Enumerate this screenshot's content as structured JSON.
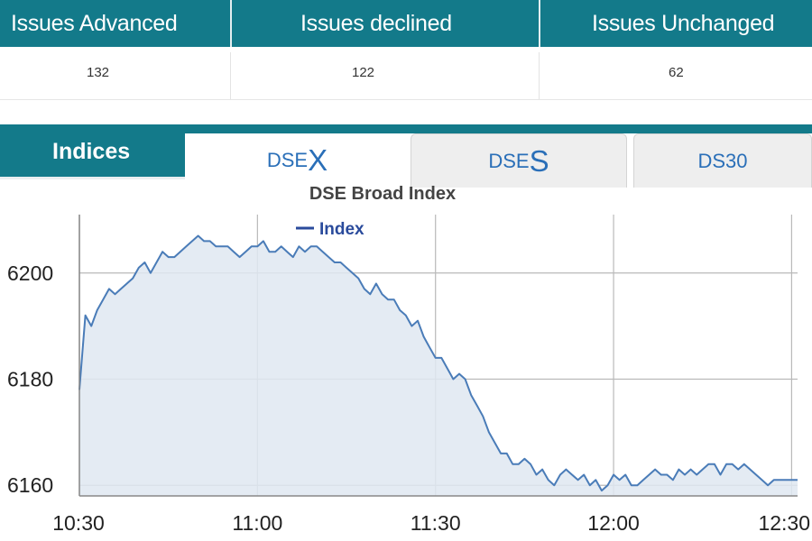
{
  "stats": {
    "headers": [
      "Issues Advanced",
      "Issues declined",
      "Issues Unchanged"
    ],
    "values": [
      "132",
      "122",
      "62"
    ]
  },
  "tabs": {
    "indices": "Indices",
    "dsex": {
      "prefix": "DSE",
      "suffix": "X"
    },
    "dses": {
      "prefix": "DSE",
      "suffix": "S"
    },
    "ds30": "DS30"
  },
  "colors": {
    "header_teal": "#137a8a",
    "tab_text": "#2a6fb8",
    "series_line": "#4a7cb8",
    "series_fill": "#dfe7f1"
  },
  "chart_data": {
    "type": "area",
    "title": "DSE Broad Index",
    "legend": [
      "Index"
    ],
    "legend_position": "top",
    "x_ticks": [
      "10:30",
      "11:00",
      "11:30",
      "12:00",
      "12:30"
    ],
    "y_ticks": [
      6160,
      6180,
      6200
    ],
    "xlim": [
      "10:30",
      "12:31"
    ],
    "ylim": [
      6158,
      6211
    ],
    "grid": true,
    "series": [
      {
        "name": "Index",
        "points": [
          [
            "10:30",
            6178
          ],
          [
            "10:31",
            6192
          ],
          [
            "10:32",
            6190
          ],
          [
            "10:33",
            6193
          ],
          [
            "10:34",
            6195
          ],
          [
            "10:35",
            6197
          ],
          [
            "10:36",
            6196
          ],
          [
            "10:37",
            6197
          ],
          [
            "10:38",
            6198
          ],
          [
            "10:39",
            6199
          ],
          [
            "10:40",
            6201
          ],
          [
            "10:41",
            6202
          ],
          [
            "10:42",
            6200
          ],
          [
            "10:43",
            6202
          ],
          [
            "10:44",
            6204
          ],
          [
            "10:45",
            6203
          ],
          [
            "10:46",
            6203
          ],
          [
            "10:47",
            6204
          ],
          [
            "10:48",
            6205
          ],
          [
            "10:49",
            6206
          ],
          [
            "10:50",
            6207
          ],
          [
            "10:51",
            6206
          ],
          [
            "10:52",
            6206
          ],
          [
            "10:53",
            6205
          ],
          [
            "10:54",
            6205
          ],
          [
            "10:55",
            6205
          ],
          [
            "10:56",
            6204
          ],
          [
            "10:57",
            6203
          ],
          [
            "10:58",
            6204
          ],
          [
            "10:59",
            6205
          ],
          [
            "11:00",
            6205
          ],
          [
            "11:01",
            6206
          ],
          [
            "11:02",
            6204
          ],
          [
            "11:03",
            6204
          ],
          [
            "11:04",
            6205
          ],
          [
            "11:05",
            6204
          ],
          [
            "11:06",
            6203
          ],
          [
            "11:07",
            6205
          ],
          [
            "11:08",
            6204
          ],
          [
            "11:09",
            6205
          ],
          [
            "11:10",
            6205
          ],
          [
            "11:11",
            6204
          ],
          [
            "11:12",
            6203
          ],
          [
            "11:13",
            6202
          ],
          [
            "11:14",
            6202
          ],
          [
            "11:15",
            6201
          ],
          [
            "11:16",
            6200
          ],
          [
            "11:17",
            6199
          ],
          [
            "11:18",
            6197
          ],
          [
            "11:19",
            6196
          ],
          [
            "11:20",
            6198
          ],
          [
            "11:21",
            6196
          ],
          [
            "11:22",
            6195
          ],
          [
            "11:23",
            6195
          ],
          [
            "11:24",
            6193
          ],
          [
            "11:25",
            6192
          ],
          [
            "11:26",
            6190
          ],
          [
            "11:27",
            6191
          ],
          [
            "11:28",
            6188
          ],
          [
            "11:29",
            6186
          ],
          [
            "11:30",
            6184
          ],
          [
            "11:31",
            6184
          ],
          [
            "11:32",
            6182
          ],
          [
            "11:33",
            6180
          ],
          [
            "11:34",
            6181
          ],
          [
            "11:35",
            6180
          ],
          [
            "11:36",
            6177
          ],
          [
            "11:37",
            6175
          ],
          [
            "11:38",
            6173
          ],
          [
            "11:39",
            6170
          ],
          [
            "11:40",
            6168
          ],
          [
            "11:41",
            6166
          ],
          [
            "11:42",
            6166
          ],
          [
            "11:43",
            6164
          ],
          [
            "11:44",
            6164
          ],
          [
            "11:45",
            6165
          ],
          [
            "11:46",
            6164
          ],
          [
            "11:47",
            6162
          ],
          [
            "11:48",
            6163
          ],
          [
            "11:49",
            6161
          ],
          [
            "11:50",
            6160
          ],
          [
            "11:51",
            6162
          ],
          [
            "11:52",
            6163
          ],
          [
            "11:53",
            6162
          ],
          [
            "11:54",
            6161
          ],
          [
            "11:55",
            6162
          ],
          [
            "11:56",
            6160
          ],
          [
            "11:57",
            6161
          ],
          [
            "11:58",
            6159
          ],
          [
            "11:59",
            6160
          ],
          [
            "12:00",
            6162
          ],
          [
            "12:01",
            6161
          ],
          [
            "12:02",
            6162
          ],
          [
            "12:03",
            6160
          ],
          [
            "12:04",
            6160
          ],
          [
            "12:05",
            6161
          ],
          [
            "12:06",
            6162
          ],
          [
            "12:07",
            6163
          ],
          [
            "12:08",
            6162
          ],
          [
            "12:09",
            6162
          ],
          [
            "12:10",
            6161
          ],
          [
            "12:11",
            6163
          ],
          [
            "12:12",
            6162
          ],
          [
            "12:13",
            6163
          ],
          [
            "12:14",
            6162
          ],
          [
            "12:15",
            6163
          ],
          [
            "12:16",
            6164
          ],
          [
            "12:17",
            6164
          ],
          [
            "12:18",
            6162
          ],
          [
            "12:19",
            6164
          ],
          [
            "12:20",
            6164
          ],
          [
            "12:21",
            6163
          ],
          [
            "12:22",
            6164
          ],
          [
            "12:23",
            6163
          ],
          [
            "12:24",
            6162
          ],
          [
            "12:25",
            6161
          ],
          [
            "12:26",
            6160
          ],
          [
            "12:27",
            6161
          ],
          [
            "12:28",
            6161
          ],
          [
            "12:29",
            6161
          ],
          [
            "12:30",
            6161
          ],
          [
            "12:31",
            6161
          ]
        ]
      }
    ]
  }
}
